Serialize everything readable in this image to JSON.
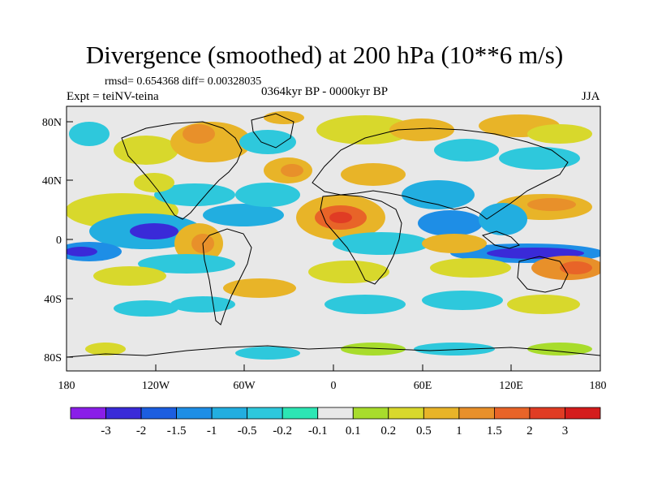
{
  "title": "Divergence (smoothed) at 200 hPa (10**6 m/s)",
  "stats": "rmsd= 0.654368 diff= 0.00328035",
  "experiment": "Expt = teiNV-teina",
  "period": "0364kyr BP - 0000kyr BP",
  "season": "JJA",
  "axes": {
    "y_ticks": [
      "80N",
      "40N",
      "0",
      "40S",
      "80S"
    ],
    "x_ticks": [
      "180",
      "120W",
      "60W",
      "0",
      "60E",
      "120E",
      "180"
    ]
  },
  "colorbar": {
    "labels": [
      "-3",
      "-2",
      "-1.5",
      "-1",
      "-0.5",
      "-0.2",
      "-0.1",
      "0.1",
      "0.2",
      "0.5",
      "1",
      "1.5",
      "2",
      "3"
    ],
    "colors": [
      "#8a1ee8",
      "#3a2ad8",
      "#1c5ee0",
      "#1e8ee6",
      "#22aee0",
      "#2ec8dc",
      "#2ce6b4",
      "#e8e8e8",
      "#a8dc2c",
      "#d8d82c",
      "#e8b428",
      "#e8902a",
      "#e86428",
      "#e03c24",
      "#d41c1c"
    ]
  },
  "colors": {
    "background": "#e8e8e8",
    "coastline": "#000000",
    "frame": "#000000"
  }
}
